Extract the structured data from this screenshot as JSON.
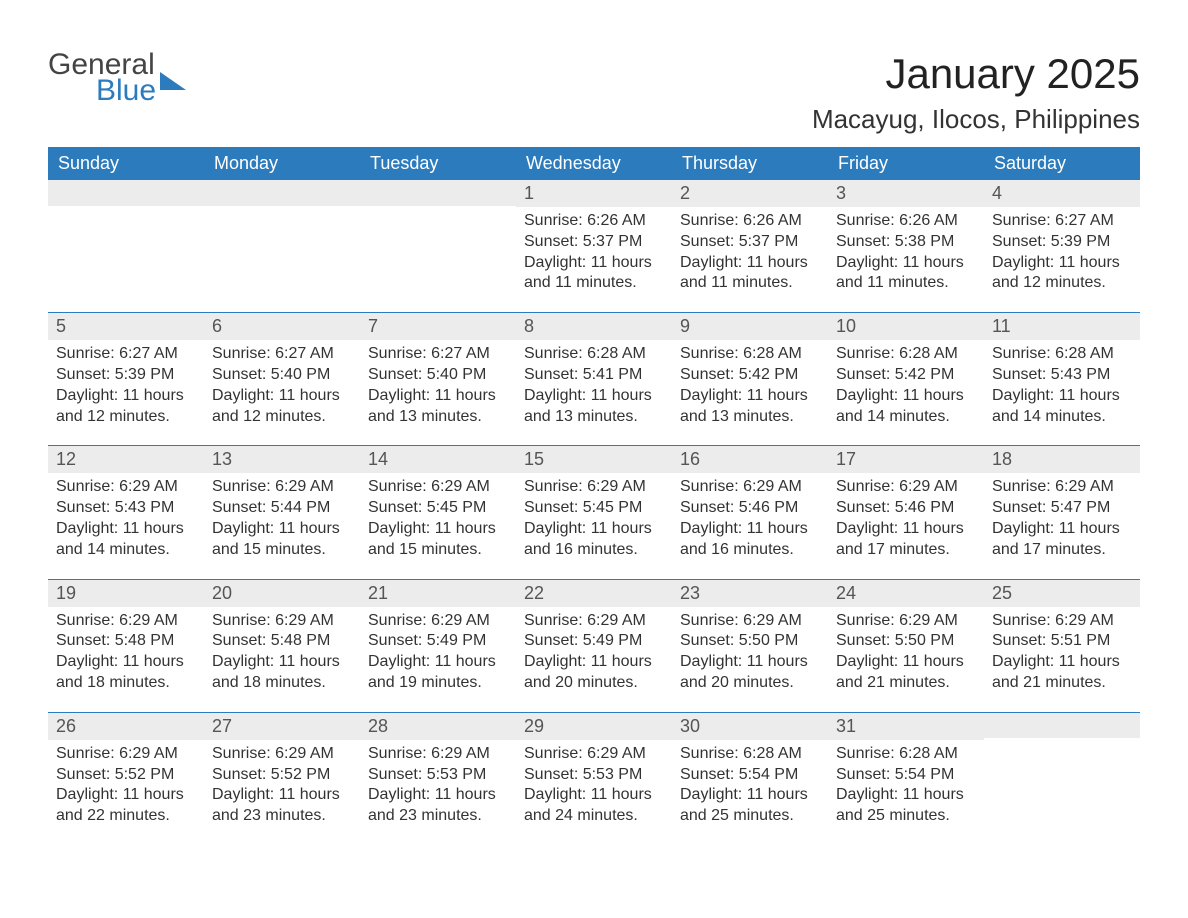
{
  "logo": {
    "word1": "General",
    "word2": "Blue"
  },
  "title": {
    "month": "January 2025",
    "location": "Macayug, Ilocos, Philippines"
  },
  "colors": {
    "header_bg": "#2b7bbd",
    "header_text": "#ffffff",
    "daynum_bg": "#ececec",
    "row_divider": "#2b7bbd",
    "body_text": "#333333",
    "page_bg": "#ffffff"
  },
  "typography": {
    "month_title_fontsize": 42,
    "location_fontsize": 26,
    "weekday_fontsize": 18,
    "daynum_fontsize": 18,
    "body_fontsize": 16
  },
  "calendar": {
    "weekdays": [
      "Sunday",
      "Monday",
      "Tuesday",
      "Wednesday",
      "Thursday",
      "Friday",
      "Saturday"
    ],
    "weeks": [
      [
        null,
        null,
        null,
        {
          "n": "1",
          "sunrise": "6:26 AM",
          "sunset": "5:37 PM",
          "daylight": "11 hours and 11 minutes."
        },
        {
          "n": "2",
          "sunrise": "6:26 AM",
          "sunset": "5:37 PM",
          "daylight": "11 hours and 11 minutes."
        },
        {
          "n": "3",
          "sunrise": "6:26 AM",
          "sunset": "5:38 PM",
          "daylight": "11 hours and 11 minutes."
        },
        {
          "n": "4",
          "sunrise": "6:27 AM",
          "sunset": "5:39 PM",
          "daylight": "11 hours and 12 minutes."
        }
      ],
      [
        {
          "n": "5",
          "sunrise": "6:27 AM",
          "sunset": "5:39 PM",
          "daylight": "11 hours and 12 minutes."
        },
        {
          "n": "6",
          "sunrise": "6:27 AM",
          "sunset": "5:40 PM",
          "daylight": "11 hours and 12 minutes."
        },
        {
          "n": "7",
          "sunrise": "6:27 AM",
          "sunset": "5:40 PM",
          "daylight": "11 hours and 13 minutes."
        },
        {
          "n": "8",
          "sunrise": "6:28 AM",
          "sunset": "5:41 PM",
          "daylight": "11 hours and 13 minutes."
        },
        {
          "n": "9",
          "sunrise": "6:28 AM",
          "sunset": "5:42 PM",
          "daylight": "11 hours and 13 minutes."
        },
        {
          "n": "10",
          "sunrise": "6:28 AM",
          "sunset": "5:42 PM",
          "daylight": "11 hours and 14 minutes."
        },
        {
          "n": "11",
          "sunrise": "6:28 AM",
          "sunset": "5:43 PM",
          "daylight": "11 hours and 14 minutes."
        }
      ],
      [
        {
          "n": "12",
          "sunrise": "6:29 AM",
          "sunset": "5:43 PM",
          "daylight": "11 hours and 14 minutes."
        },
        {
          "n": "13",
          "sunrise": "6:29 AM",
          "sunset": "5:44 PM",
          "daylight": "11 hours and 15 minutes."
        },
        {
          "n": "14",
          "sunrise": "6:29 AM",
          "sunset": "5:45 PM",
          "daylight": "11 hours and 15 minutes."
        },
        {
          "n": "15",
          "sunrise": "6:29 AM",
          "sunset": "5:45 PM",
          "daylight": "11 hours and 16 minutes."
        },
        {
          "n": "16",
          "sunrise": "6:29 AM",
          "sunset": "5:46 PM",
          "daylight": "11 hours and 16 minutes."
        },
        {
          "n": "17",
          "sunrise": "6:29 AM",
          "sunset": "5:46 PM",
          "daylight": "11 hours and 17 minutes."
        },
        {
          "n": "18",
          "sunrise": "6:29 AM",
          "sunset": "5:47 PM",
          "daylight": "11 hours and 17 minutes."
        }
      ],
      [
        {
          "n": "19",
          "sunrise": "6:29 AM",
          "sunset": "5:48 PM",
          "daylight": "11 hours and 18 minutes."
        },
        {
          "n": "20",
          "sunrise": "6:29 AM",
          "sunset": "5:48 PM",
          "daylight": "11 hours and 18 minutes."
        },
        {
          "n": "21",
          "sunrise": "6:29 AM",
          "sunset": "5:49 PM",
          "daylight": "11 hours and 19 minutes."
        },
        {
          "n": "22",
          "sunrise": "6:29 AM",
          "sunset": "5:49 PM",
          "daylight": "11 hours and 20 minutes."
        },
        {
          "n": "23",
          "sunrise": "6:29 AM",
          "sunset": "5:50 PM",
          "daylight": "11 hours and 20 minutes."
        },
        {
          "n": "24",
          "sunrise": "6:29 AM",
          "sunset": "5:50 PM",
          "daylight": "11 hours and 21 minutes."
        },
        {
          "n": "25",
          "sunrise": "6:29 AM",
          "sunset": "5:51 PM",
          "daylight": "11 hours and 21 minutes."
        }
      ],
      [
        {
          "n": "26",
          "sunrise": "6:29 AM",
          "sunset": "5:52 PM",
          "daylight": "11 hours and 22 minutes."
        },
        {
          "n": "27",
          "sunrise": "6:29 AM",
          "sunset": "5:52 PM",
          "daylight": "11 hours and 23 minutes."
        },
        {
          "n": "28",
          "sunrise": "6:29 AM",
          "sunset": "5:53 PM",
          "daylight": "11 hours and 23 minutes."
        },
        {
          "n": "29",
          "sunrise": "6:29 AM",
          "sunset": "5:53 PM",
          "daylight": "11 hours and 24 minutes."
        },
        {
          "n": "30",
          "sunrise": "6:28 AM",
          "sunset": "5:54 PM",
          "daylight": "11 hours and 25 minutes."
        },
        {
          "n": "31",
          "sunrise": "6:28 AM",
          "sunset": "5:54 PM",
          "daylight": "11 hours and 25 minutes."
        },
        null
      ]
    ]
  },
  "labels": {
    "sunrise": "Sunrise: ",
    "sunset": "Sunset: ",
    "daylight": "Daylight: "
  }
}
